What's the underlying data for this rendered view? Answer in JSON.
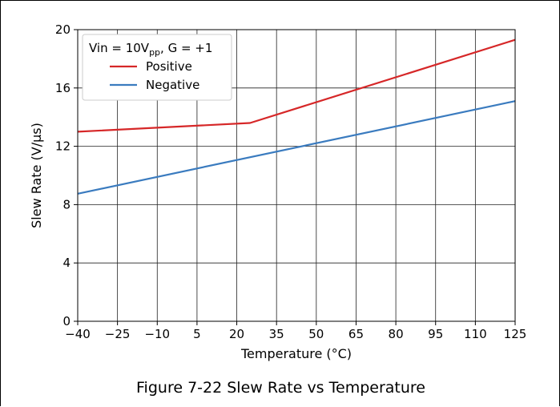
{
  "caption": "Figure 7-22 Slew Rate vs Temperature",
  "chart_data": {
    "type": "line",
    "title": "",
    "xlabel": "Temperature (°C)",
    "ylabel": "Slew Rate (V/µs)",
    "xlim": [
      -40,
      125
    ],
    "ylim": [
      0,
      20
    ],
    "xticks": [
      -40,
      -25,
      -10,
      5,
      20,
      35,
      50,
      65,
      80,
      95,
      110,
      125
    ],
    "xtick_labels": [
      "−40",
      "−25",
      "−10",
      "5",
      "20",
      "35",
      "50",
      "65",
      "80",
      "95",
      "110",
      "125"
    ],
    "yticks": [
      0,
      4,
      8,
      12,
      16,
      20
    ],
    "ytick_labels": [
      "0",
      "4",
      "8",
      "12",
      "16",
      "20"
    ],
    "grid": true,
    "legend": {
      "placement": "top-left",
      "condition": {
        "prefix": "Vin = 10V",
        "subscript": "pp",
        "suffix": ",  G = +1"
      }
    },
    "series": [
      {
        "name": "Positive",
        "color": "#d62728",
        "x": [
          -40,
          25,
          125
        ],
        "y": [
          13.0,
          13.6,
          19.3
        ]
      },
      {
        "name": "Negative",
        "color": "#3a7bbf",
        "x": [
          -40,
          125
        ],
        "y": [
          8.75,
          15.1
        ]
      }
    ]
  }
}
